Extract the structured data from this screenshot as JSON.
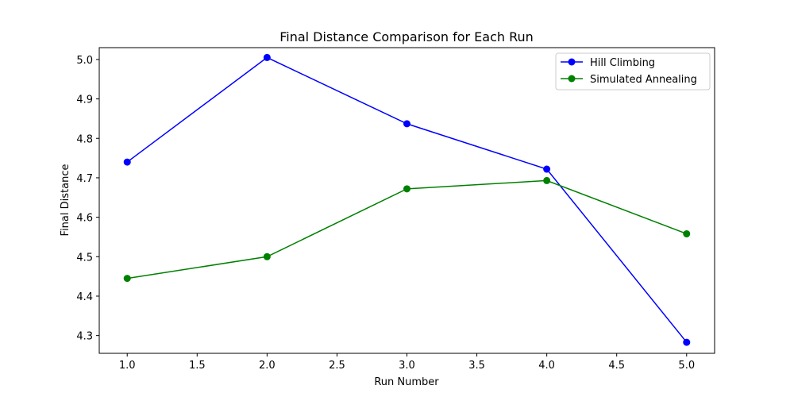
{
  "chart_data": {
    "type": "line",
    "title": "Final Distance Comparison for Each Run",
    "xlabel": "Run Number",
    "ylabel": "Final Distance",
    "x": [
      1.0,
      2.0,
      3.0,
      4.0,
      5.0
    ],
    "xlim": [
      0.8,
      5.2
    ],
    "ylim": [
      4.255,
      5.03
    ],
    "xticks": [
      "1.0",
      "1.5",
      "2.0",
      "2.5",
      "3.0",
      "3.5",
      "4.0",
      "4.5",
      "5.0"
    ],
    "yticks": [
      "4.3",
      "4.4",
      "4.5",
      "4.6",
      "4.7",
      "4.8",
      "4.9",
      "5.0"
    ],
    "grid": false,
    "legend_position": "top-right",
    "series": [
      {
        "name": "Hill Climbing",
        "color": "#0000ff",
        "marker": "circle",
        "values": [
          4.74,
          5.005,
          4.837,
          4.722,
          4.283
        ]
      },
      {
        "name": "Simulated Annealing",
        "color": "#008000",
        "marker": "circle",
        "values": [
          4.445,
          4.5,
          4.672,
          4.693,
          4.558
        ]
      }
    ]
  }
}
